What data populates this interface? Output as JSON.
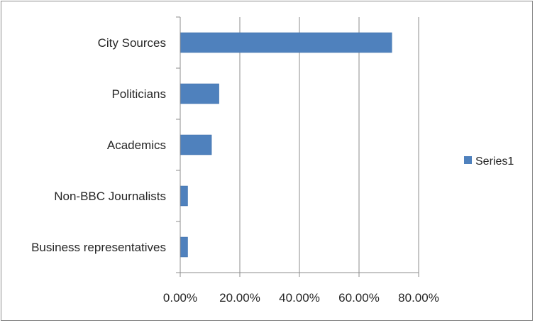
{
  "chart_data": {
    "type": "bar",
    "orientation": "horizontal",
    "categories": [
      "City Sources",
      "Politicians",
      "Academics",
      "Non-BBC Journalists",
      "Business representatives"
    ],
    "series": [
      {
        "name": "Series1",
        "values": [
          0.71,
          0.13,
          0.105,
          0.025,
          0.025
        ],
        "color": "#4f81bd"
      }
    ],
    "xlim": [
      0,
      0.8
    ],
    "xticks": [
      0,
      0.2,
      0.4,
      0.6,
      0.8
    ],
    "xtick_labels": [
      "0.00%",
      "20.00%",
      "40.00%",
      "60.00%",
      "80.00%"
    ],
    "grid": "vertical",
    "legend_position": "right",
    "title": "",
    "xlabel": "",
    "ylabel": ""
  }
}
